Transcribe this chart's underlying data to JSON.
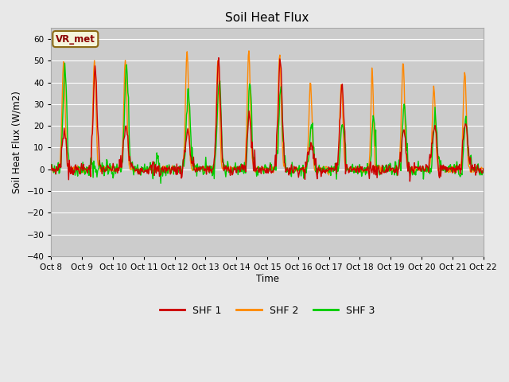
{
  "title": "Soil Heat Flux",
  "ylabel": "Soil Heat Flux (W/m2)",
  "xlabel": "Time",
  "ylim": [
    -40,
    65
  ],
  "yticks": [
    -40,
    -30,
    -20,
    -10,
    0,
    10,
    20,
    30,
    40,
    50,
    60
  ],
  "background_color": "#e8e8e8",
  "plot_bg_color": "#cccccc",
  "grid_color": "#ffffff",
  "shf1_color": "#cc0000",
  "shf2_color": "#ff8800",
  "shf3_color": "#00cc00",
  "legend_label1": "SHF 1",
  "legend_label2": "SHF 2",
  "legend_label3": "SHF 3",
  "annotation": "VR_met",
  "annotation_color": "#8b0000",
  "annotation_bg": "#f5f5dc",
  "annotation_edge": "#8b6914",
  "n_days": 14,
  "start_day": 8,
  "figwidth": 6.4,
  "figheight": 4.8,
  "dpi": 100
}
